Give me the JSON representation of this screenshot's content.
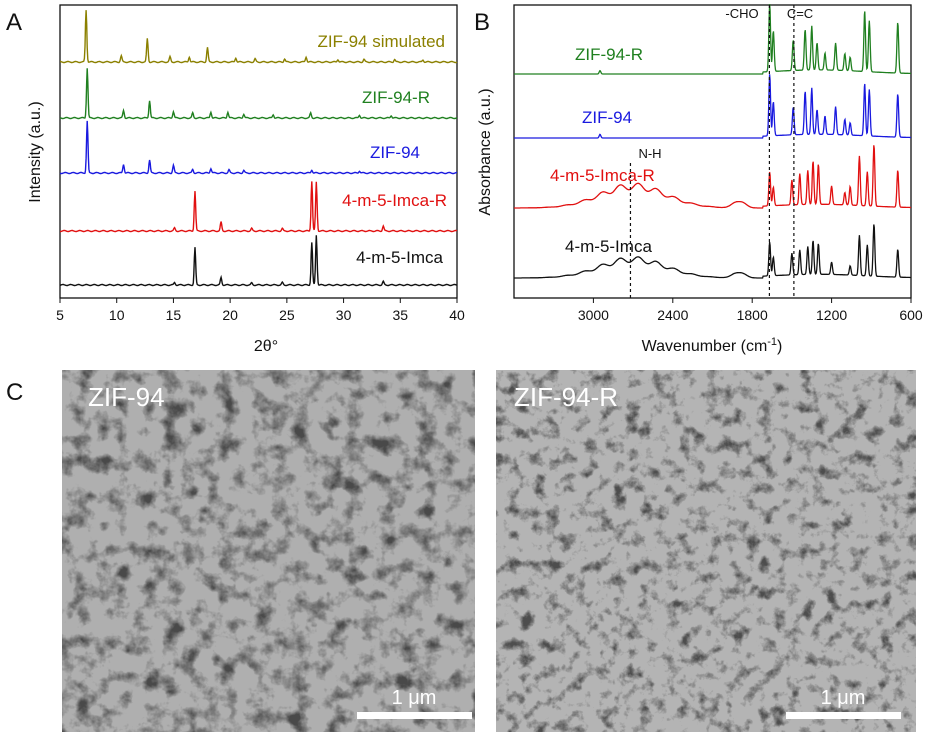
{
  "panels": {
    "a_letter": "A",
    "b_letter": "B",
    "c_letter": "C"
  },
  "chart_data": [
    {
      "type": "line",
      "panel": "A",
      "xlabel": "2θ°",
      "ylabel": "Intensity (a.u.)",
      "xlim": [
        5,
        40
      ],
      "xticks": [
        5,
        10,
        15,
        20,
        25,
        30,
        35,
        40
      ],
      "stacked": true,
      "series": [
        {
          "name": "ZIF-94 simulated",
          "color": "#8b8000",
          "peaks": [
            [
              7.3,
              1.0
            ],
            [
              10.4,
              0.12
            ],
            [
              12.7,
              0.45
            ],
            [
              14.7,
              0.1
            ],
            [
              16.4,
              0.1
            ],
            [
              18.0,
              0.28
            ],
            [
              20.5,
              0.08
            ],
            [
              22.2,
              0.06
            ],
            [
              24.8,
              0.06
            ],
            [
              26.7,
              0.1
            ],
            [
              29.5,
              0.05
            ],
            [
              31.8,
              0.05
            ],
            [
              34.5,
              0.05
            ],
            [
              37.0,
              0.04
            ]
          ]
        },
        {
          "name": "ZIF-94-R",
          "color": "#208020",
          "peaks": [
            [
              7.4,
              1.0
            ],
            [
              10.6,
              0.15
            ],
            [
              12.9,
              0.35
            ],
            [
              15.0,
              0.13
            ],
            [
              16.7,
              0.1
            ],
            [
              18.3,
              0.12
            ],
            [
              19.8,
              0.12
            ],
            [
              21.2,
              0.08
            ],
            [
              23.8,
              0.07
            ],
            [
              27.1,
              0.1
            ],
            [
              31.4,
              0.06
            ],
            [
              34.2,
              0.05
            ]
          ]
        },
        {
          "name": "ZIF-94",
          "color": "#1a1adf",
          "peaks": [
            [
              7.4,
              1.0
            ],
            [
              10.6,
              0.17
            ],
            [
              12.9,
              0.25
            ],
            [
              15.0,
              0.15
            ],
            [
              16.7,
              0.07
            ],
            [
              18.3,
              0.09
            ],
            [
              19.9,
              0.06
            ],
            [
              21.2,
              0.05
            ],
            [
              27.2,
              0.06
            ],
            [
              31.4,
              0.04
            ]
          ]
        },
        {
          "name": "4-m-5-Imca-R",
          "color": "#e11010",
          "peaks": [
            [
              15.1,
              0.06
            ],
            [
              16.9,
              0.8
            ],
            [
              19.2,
              0.18
            ],
            [
              21.9,
              0.05
            ],
            [
              24.6,
              0.05
            ],
            [
              27.2,
              1.0
            ],
            [
              27.6,
              0.98
            ],
            [
              33.5,
              0.1
            ]
          ]
        },
        {
          "name": "4-m-5-Imca",
          "color": "#111111",
          "peaks": [
            [
              15.1,
              0.05
            ],
            [
              16.9,
              0.75
            ],
            [
              19.2,
              0.15
            ],
            [
              21.9,
              0.04
            ],
            [
              24.6,
              0.05
            ],
            [
              27.2,
              0.85
            ],
            [
              27.6,
              1.0
            ],
            [
              33.5,
              0.07
            ]
          ]
        }
      ]
    },
    {
      "type": "line",
      "panel": "B",
      "xlabel": "Wavenumber (cm",
      "xlabel_sup": "-1",
      "xlabel_end": ")",
      "ylabel": "Absorbance (a.u.)",
      "xlim": [
        3600,
        600
      ],
      "xticks": [
        3000,
        2400,
        1800,
        1200,
        600
      ],
      "stacked": true,
      "annotations": [
        {
          "text": "-CHO",
          "x": 1670
        },
        {
          "text": "C=C",
          "x": 1485
        },
        {
          "text": "N-H",
          "x": 2720
        }
      ],
      "series": [
        {
          "name": "ZIF-94-R",
          "color": "#208020",
          "peaks": [
            [
              2950,
              0.05
            ],
            [
              1668,
              1.0
            ],
            [
              1640,
              0.6
            ],
            [
              1490,
              0.45
            ],
            [
              1400,
              0.6
            ],
            [
              1350,
              0.65
            ],
            [
              1310,
              0.4
            ],
            [
              1250,
              0.25
            ],
            [
              1170,
              0.4
            ],
            [
              1100,
              0.25
            ],
            [
              1060,
              0.2
            ],
            [
              950,
              0.9
            ],
            [
              915,
              0.75
            ],
            [
              700,
              0.75
            ]
          ]
        },
        {
          "name": "ZIF-94",
          "color": "#1a1adf",
          "peaks": [
            [
              2950,
              0.06
            ],
            [
              1668,
              1.0
            ],
            [
              1640,
              0.55
            ],
            [
              1490,
              0.45
            ],
            [
              1400,
              0.7
            ],
            [
              1350,
              0.75
            ],
            [
              1310,
              0.4
            ],
            [
              1250,
              0.3
            ],
            [
              1170,
              0.45
            ],
            [
              1100,
              0.25
            ],
            [
              1060,
              0.2
            ],
            [
              950,
              0.85
            ],
            [
              915,
              0.75
            ],
            [
              700,
              0.7
            ]
          ]
        },
        {
          "name": "4-m-5-Imca-R",
          "color": "#e11010",
          "broad": [
            [
              2700,
              0.35,
              350
            ],
            [
              1900,
              0.12,
              60
            ]
          ],
          "peaks": [
            [
              1668,
              0.55
            ],
            [
              1640,
              0.3
            ],
            [
              1500,
              0.4
            ],
            [
              1440,
              0.5
            ],
            [
              1380,
              0.55
            ],
            [
              1340,
              0.7
            ],
            [
              1300,
              0.65
            ],
            [
              1200,
              0.3
            ],
            [
              1100,
              0.2
            ],
            [
              1060,
              0.3
            ],
            [
              990,
              0.8
            ],
            [
              930,
              0.55
            ],
            [
              880,
              1.0
            ],
            [
              700,
              0.6
            ]
          ]
        },
        {
          "name": "4-m-5-Imca",
          "color": "#111111",
          "broad": [
            [
              2700,
              0.3,
              350
            ],
            [
              1900,
              0.1,
              60
            ]
          ],
          "peaks": [
            [
              1668,
              0.55
            ],
            [
              1640,
              0.3
            ],
            [
              1500,
              0.35
            ],
            [
              1440,
              0.4
            ],
            [
              1380,
              0.45
            ],
            [
              1340,
              0.55
            ],
            [
              1300,
              0.5
            ],
            [
              1200,
              0.2
            ],
            [
              1060,
              0.15
            ],
            [
              990,
              0.65
            ],
            [
              930,
              0.5
            ],
            [
              880,
              0.85
            ],
            [
              700,
              0.45
            ]
          ]
        }
      ]
    }
  ],
  "sem": {
    "left_label": "ZIF-94",
    "right_label": "ZIF-94-R",
    "scale_text": "1 μm"
  }
}
